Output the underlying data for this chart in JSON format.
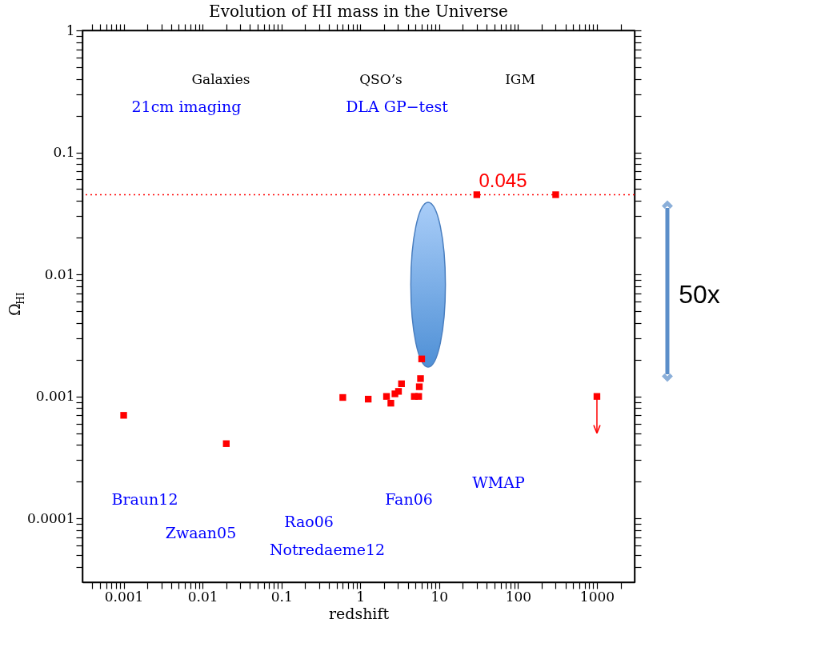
{
  "chart_data": {
    "type": "scatter",
    "title": "Evolution of HI mass in the Universe",
    "xlabel": "redshift",
    "ylabel": "Ω$_{HI}$",
    "log": "xy",
    "grid": false,
    "legend": false,
    "marker": "square",
    "x": [
      0.001,
      0.02,
      0.6,
      1.26,
      2.15,
      2.44,
      2.75,
      3.05,
      3.33,
      4.84,
      5.5,
      5.6,
      5.8,
      6.0,
      30,
      300,
      1000
    ],
    "series": [
      {
        "color": "#ff0000",
        "values": [
          0.0007,
          0.00041,
          0.00098,
          0.00095,
          0.001,
          0.00088,
          0.00105,
          0.0011,
          0.00127,
          0.001,
          0.001,
          0.0012,
          0.0014,
          0.00203,
          0.045,
          0.045,
          0.001
        ],
        "errors": [
          null,
          null,
          null,
          null,
          null,
          null,
          null,
          null,
          null,
          null,
          null,
          null,
          null,
          null,
          null,
          null,
          [
            0.0005,
            0.001
          ]
        ]
      }
    ],
    "ref_lines": [
      {
        "axis": "y",
        "value": 0.045,
        "label": "0.045",
        "color": "#ff0000",
        "line_style": "dotted"
      }
    ],
    "annotations": [
      "Galaxies",
      "QSO’s",
      "IGM",
      "21cm imaging",
      "DLA  GP−test",
      "Braun12",
      "Zwaan05",
      "Rao06",
      "Notredaeme12",
      "Fan06",
      "WMAP",
      "50x"
    ],
    "xlim": [
      0.0003,
      3000
    ],
    "ylim": [
      3e-05,
      1
    ],
    "xticks": [
      {
        "value": 0.0004,
        "label": null
      },
      {
        "value": 0.0005,
        "label": null
      },
      {
        "value": 0.0006,
        "label": null
      },
      {
        "value": 0.0007,
        "label": null
      },
      {
        "value": 0.0008,
        "label": null
      },
      {
        "value": 0.0009,
        "label": null
      },
      0.001,
      {
        "value": 0.002,
        "label": null
      },
      {
        "value": 0.003,
        "label": null
      },
      {
        "value": 0.004,
        "label": null
      },
      {
        "value": 0.005,
        "label": null
      },
      {
        "value": 0.006,
        "label": null
      },
      {
        "value": 0.007,
        "label": null
      },
      {
        "value": 0.008,
        "label": null
      },
      {
        "value": 0.009,
        "label": null
      },
      0.01,
      {
        "value": 0.02,
        "label": null
      },
      {
        "value": 0.03,
        "label": null
      },
      {
        "value": 0.04,
        "label": null
      },
      {
        "value": 0.05,
        "label": null
      },
      {
        "value": 0.06,
        "label": null
      },
      {
        "value": 0.07,
        "label": null
      },
      {
        "value": 0.08,
        "label": null
      },
      {
        "value": 0.09,
        "label": null
      },
      0.1,
      {
        "value": 0.2,
        "label": null
      },
      {
        "value": 0.3,
        "label": null
      },
      {
        "value": 0.4,
        "label": null
      },
      {
        "value": 0.5,
        "label": null
      },
      {
        "value": 0.6,
        "label": null
      },
      {
        "value": 0.7,
        "label": null
      },
      {
        "value": 0.8,
        "label": null
      },
      {
        "value": 0.9,
        "label": null
      },
      1,
      {
        "value": 2,
        "label": null
      },
      {
        "value": 3,
        "label": null
      },
      {
        "value": 4,
        "label": null
      },
      {
        "value": 5,
        "label": null
      },
      {
        "value": 6,
        "label": null
      },
      {
        "value": 7,
        "label": null
      },
      {
        "value": 8,
        "label": null
      },
      {
        "value": 9,
        "label": null
      },
      10,
      {
        "value": 20,
        "label": null
      },
      {
        "value": 30,
        "label": null
      },
      {
        "value": 40,
        "label": null
      },
      {
        "value": 50,
        "label": null
      },
      {
        "value": 60,
        "label": null
      },
      {
        "value": 70,
        "label": null
      },
      {
        "value": 80,
        "label": null
      },
      {
        "value": 90,
        "label": null
      },
      100,
      {
        "value": 200,
        "label": null
      },
      {
        "value": 300,
        "label": null
      },
      {
        "value": 400,
        "label": null
      },
      {
        "value": 500,
        "label": null
      },
      {
        "value": 600,
        "label": null
      },
      {
        "value": 700,
        "label": null
      },
      {
        "value": 800,
        "label": null
      },
      {
        "value": 900,
        "label": null
      },
      1000,
      {
        "value": 2000,
        "label": null
      }
    ],
    "yticks": [
      {
        "value": 4e-05,
        "label": null
      },
      {
        "value": 5e-05,
        "label": null
      },
      {
        "value": 6e-05,
        "label": null
      },
      {
        "value": 7e-05,
        "label": null
      },
      {
        "value": 8e-05,
        "label": null
      },
      {
        "value": 9e-05,
        "label": null
      },
      0.0001,
      {
        "value": 0.0002,
        "label": null
      },
      {
        "value": 0.0003,
        "label": null
      },
      {
        "value": 0.0004,
        "label": null
      },
      {
        "value": 0.0005,
        "label": null
      },
      {
        "value": 0.0006,
        "label": null
      },
      {
        "value": 0.0007,
        "label": null
      },
      {
        "value": 0.0008,
        "label": null
      },
      {
        "value": 0.0009,
        "label": null
      },
      0.001,
      {
        "value": 0.002,
        "label": null
      },
      {
        "value": 0.003,
        "label": null
      },
      {
        "value": 0.004,
        "label": null
      },
      {
        "value": 0.005,
        "label": null
      },
      {
        "value": 0.006,
        "label": null
      },
      {
        "value": 0.007,
        "label": null
      },
      {
        "value": 0.008,
        "label": null
      },
      {
        "value": 0.009,
        "label": null
      },
      0.01,
      {
        "value": 0.02,
        "label": null
      },
      {
        "value": 0.03,
        "label": null
      },
      {
        "value": 0.04,
        "label": null
      },
      {
        "value": 0.05,
        "label": null
      },
      {
        "value": 0.06,
        "label": null
      },
      {
        "value": 0.07,
        "label": null
      },
      {
        "value": 0.08,
        "label": null
      },
      {
        "value": 0.09,
        "label": null
      },
      0.1,
      {
        "value": 0.2,
        "label": null
      },
      {
        "value": 0.3,
        "label": null
      },
      {
        "value": 0.4,
        "label": null
      },
      {
        "value": 0.5,
        "label": null
      },
      {
        "value": 0.6,
        "label": null
      },
      {
        "value": 0.7,
        "label": null
      },
      {
        "value": 0.8,
        "label": null
      },
      {
        "value": 0.9,
        "label": null
      },
      1
    ]
  }
}
